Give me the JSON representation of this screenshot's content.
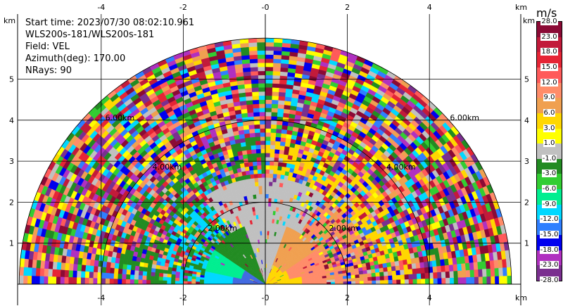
{
  "info": {
    "start_time": "Start time: 2023/07/30 08:02:10.961",
    "site": "WLS200s-181/WLS200s-181",
    "field": "Field: VEL",
    "azimuth": "Azimuth(deg): 170.00",
    "nrays": "NRays: 90"
  },
  "chart_data": {
    "type": "heatmap",
    "title": "",
    "xlabel": "km",
    "ylabel": "km",
    "xlim": [
      -6.0,
      6.0
    ],
    "ylim": [
      0,
      6.0
    ],
    "x_ticks": [
      -4,
      -2,
      0,
      2,
      4
    ],
    "x_tick_labels": [
      "-4",
      "-2",
      "-0",
      "2",
      "4"
    ],
    "y_ticks": [
      1,
      2,
      3,
      4,
      5
    ],
    "y_tick_labels": [
      "1",
      "2",
      "3",
      "4",
      "5"
    ],
    "range_rings_km": [
      2,
      4,
      6
    ],
    "range_ring_labels": [
      "2.00km",
      "4.00km",
      "6.00km"
    ],
    "grid": true,
    "unit_label": "m/s",
    "colorbar": {
      "boundaries": [
        -28.0,
        -23.0,
        -18.0,
        -15.0,
        -12.0,
        -9.0,
        -6.0,
        -3.0,
        -1.0,
        1.0,
        3.0,
        6.0,
        9.0,
        12.0,
        15.0,
        18.0,
        23.0,
        28.0
      ],
      "labels": [
        "28.0",
        "23.0",
        "18.0",
        "15.0",
        "12.0",
        "9.0",
        "6.0",
        "3.0",
        "1.0",
        "-1.0",
        "-3.0",
        "-6.0",
        "-9.0",
        "-12.0",
        "-15.0",
        "-18.0",
        "-23.0",
        "-28.0"
      ],
      "colors": [
        "#8b0a35",
        "#c21a3a",
        "#e62535",
        "#ff5a5a",
        "#ff8c69",
        "#f0a050",
        "#ffd700",
        "#ffff00",
        "#c0c0c0",
        "#228b22",
        "#32cd32",
        "#00ee90",
        "#00d8ff",
        "#2f7fff",
        "#0000ee",
        "#b030c0",
        "#7a2f8f"
      ]
    }
  }
}
